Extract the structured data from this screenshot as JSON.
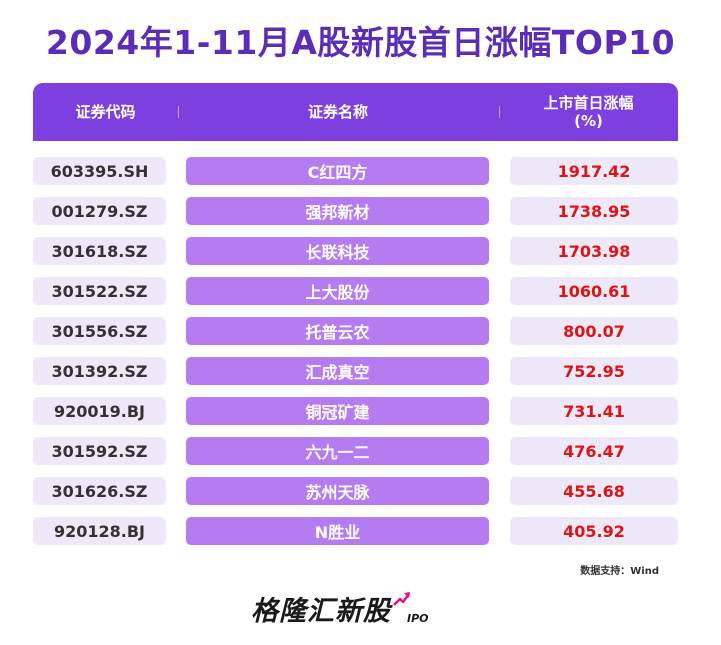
{
  "title": "2024年1-11月A股新股首日涨幅TOP10",
  "colors": {
    "title": "#5b2db6",
    "header_bg": "#7d3fe0",
    "name_cell_bg": "#b47cf0",
    "pale_cell_bg": "#efe8f8",
    "value_text": "#e01414",
    "logo_arrow": "#e0148a"
  },
  "table": {
    "headers": {
      "code": "证券代码",
      "name": "证券名称",
      "value_line1": "上市首日涨幅",
      "value_line2": "(%)"
    }
  },
  "chart_data": {
    "type": "table",
    "title": "2024年1-11月A股新股首日涨幅TOP10",
    "columns": [
      "证券代码",
      "证券名称",
      "上市首日涨幅(%)"
    ],
    "rows": [
      {
        "code": "603395.SH",
        "name": "C红四方",
        "value": "1917.42"
      },
      {
        "code": "001279.SZ",
        "name": "强邦新材",
        "value": "1738.95"
      },
      {
        "code": "301618.SZ",
        "name": "长联科技",
        "value": "1703.98"
      },
      {
        "code": "301522.SZ",
        "name": "上大股份",
        "value": "1060.61"
      },
      {
        "code": "301556.SZ",
        "name": "托普云农",
        "value": "800.07"
      },
      {
        "code": "301392.SZ",
        "name": "汇成真空",
        "value": "752.95"
      },
      {
        "code": "920019.BJ",
        "name": "铜冠矿建",
        "value": "731.41"
      },
      {
        "code": "301592.SZ",
        "name": "六九一二",
        "value": "476.47"
      },
      {
        "code": "301626.SZ",
        "name": "苏州天脉",
        "value": "455.68"
      },
      {
        "code": "920128.BJ",
        "name": "N胜业",
        "value": "405.92"
      }
    ]
  },
  "source": "数据支持：Wind",
  "logo": {
    "text": "格隆汇新股",
    "sub": "IPO",
    "icon": "rising-arrow-icon"
  }
}
